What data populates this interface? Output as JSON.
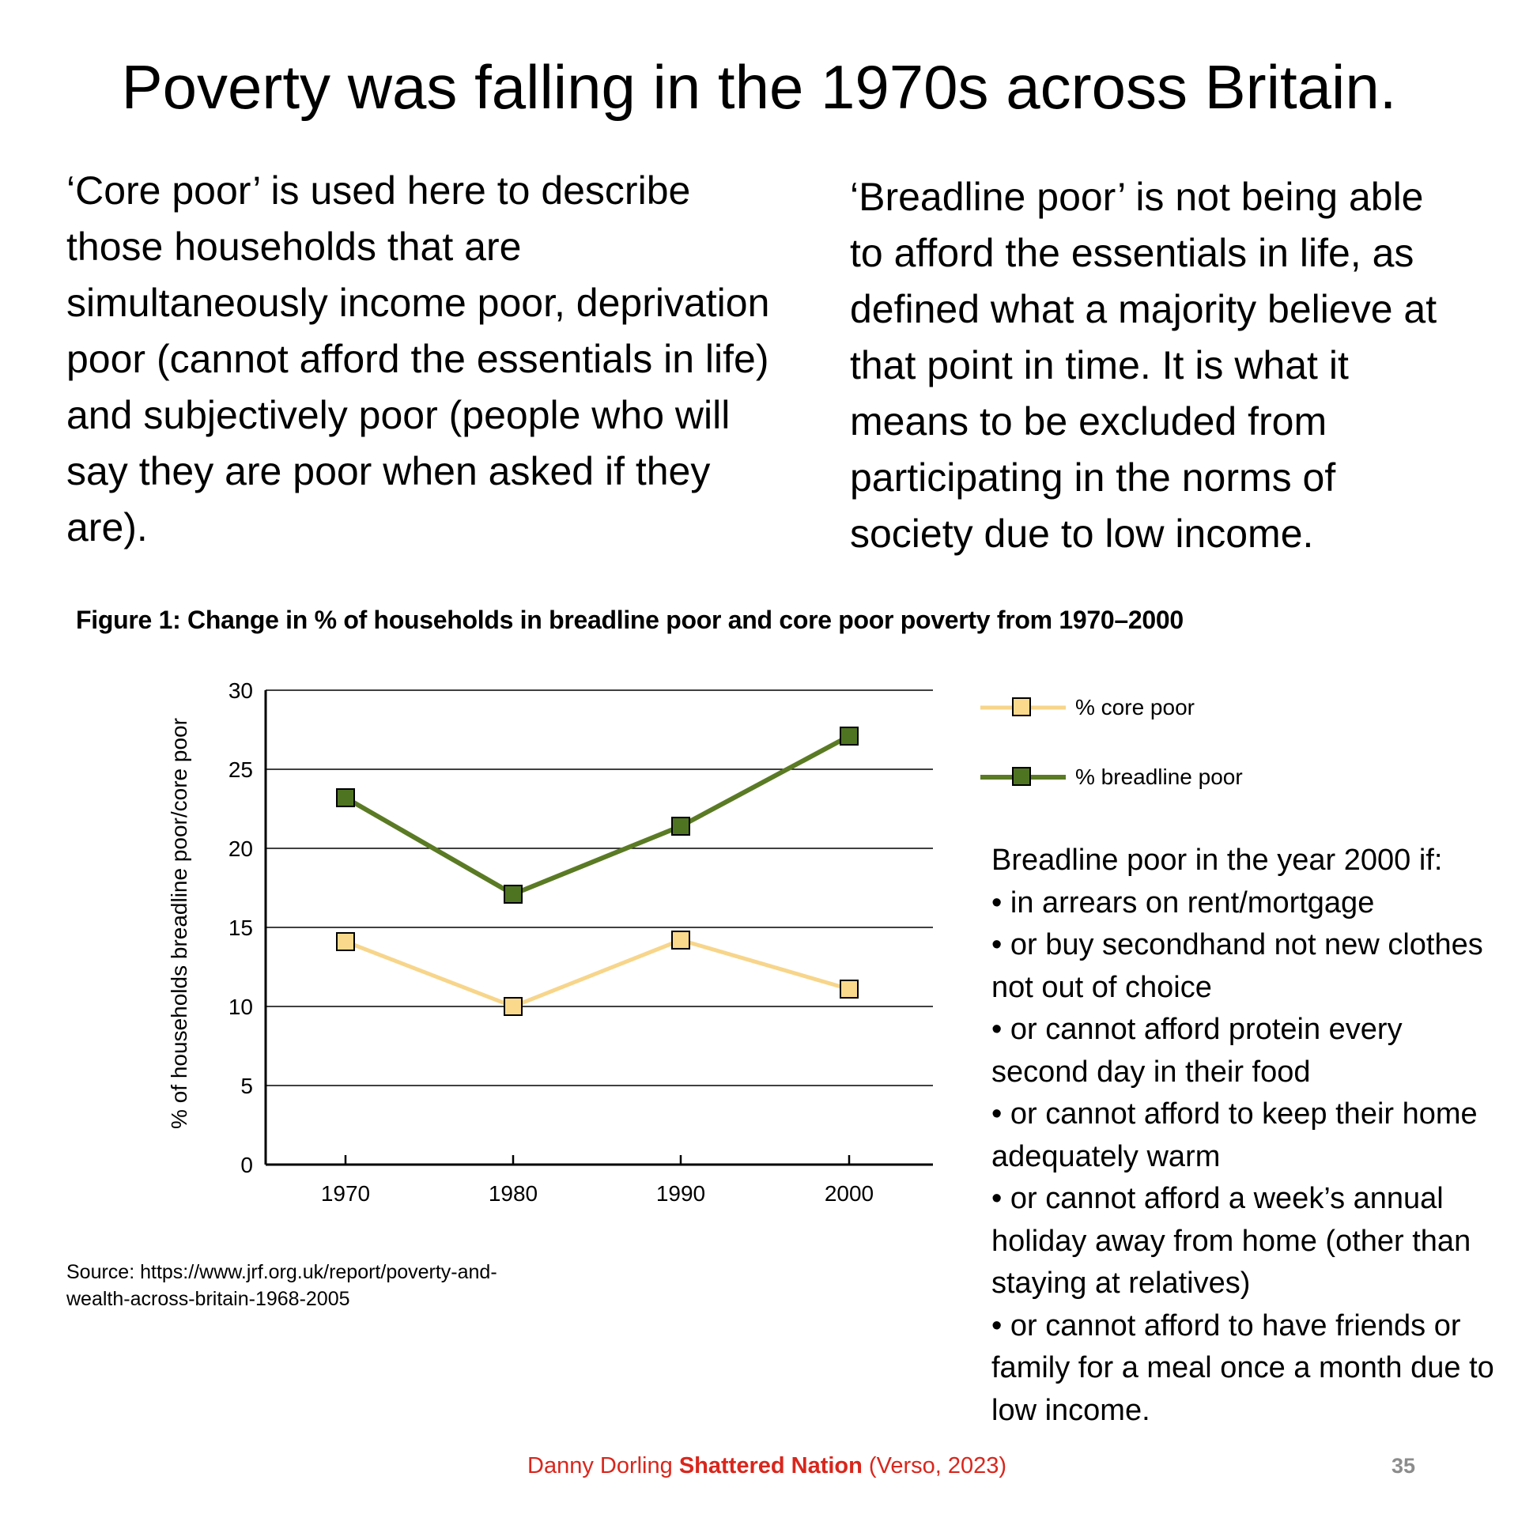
{
  "slide": {
    "title": "Poverty was falling in the 1970s across Britain.",
    "left_paragraph": "‘Core poor’ is used here to describe those households that are simultaneously income poor, deprivation poor (cannot afford the essentials in life) and subjectively poor (people who will say they are poor when asked if they are).",
    "right_paragraph": "‘Breadline poor’ is not being able to afford the essentials in life, as defined what a majority believe at that point in time. It is what it means to be excluded from participating in the norms of society due to low income.",
    "definition": {
      "heading": "Breadline poor in the year 2000 if:",
      "items": [
        "in arrears on rent/mortgage",
        "or buy secondhand not new clothes not out of choice",
        "or cannot afford protein every second day in their food",
        "or cannot afford to keep their home adequately warm",
        "or cannot afford a week’s annual holiday away from home (other than staying at relatives)",
        "or cannot afford to have friends or family for a meal once a month due to low income."
      ]
    },
    "source": "Source: https://www.jrf.org.uk/report/poverty-and-wealth-across-britain-1968-2005",
    "footer": {
      "author": "Danny Dorling ",
      "book": "Shattered Nation",
      "publisher": " (Verso, 2023)"
    },
    "page_number": "35"
  },
  "colors": {
    "core_poor_line": "#f7d58a",
    "core_poor_marker": "#fbd98c",
    "breadline_line": "#5a7a24",
    "breadline_marker": "#4f7421",
    "citation_red": "#d9261c",
    "page_number_gray": "#8c8c8c"
  },
  "chart_data": {
    "type": "line",
    "title": "Figure 1: Change in % of households in breadline poor and core poor poverty from 1970–2000",
    "xlabel": "",
    "ylabel": "% of households breadline poor/core poor",
    "x": [
      "1970",
      "1980",
      "1990",
      "2000"
    ],
    "ylim": [
      0,
      30
    ],
    "yticks": [
      0,
      5,
      10,
      15,
      20,
      25,
      30
    ],
    "grid": true,
    "legend_position": "right",
    "series": [
      {
        "name": "% core poor",
        "values": [
          14.1,
          10.0,
          14.2,
          11.1
        ]
      },
      {
        "name": "% breadline poor",
        "values": [
          23.2,
          17.1,
          21.4,
          27.1
        ]
      }
    ]
  }
}
